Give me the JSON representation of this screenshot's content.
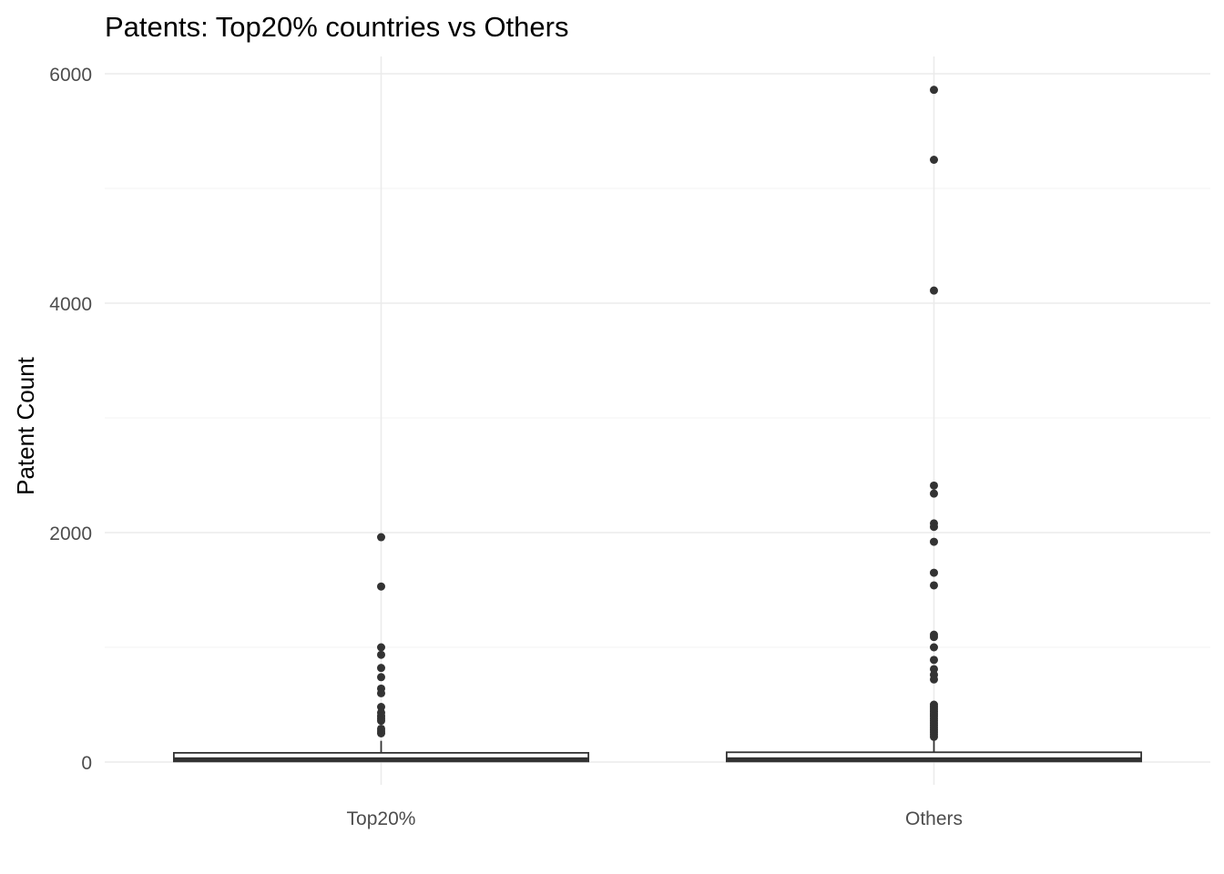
{
  "chart_data": {
    "type": "boxplot",
    "title": "Patents: Top20% countries vs Others",
    "xlabel": "",
    "ylabel": "Patent Count",
    "categories": [
      "Top20%",
      "Others"
    ],
    "ylim": [
      -200,
      6150
    ],
    "y_ticks": [
      0,
      2000,
      4000,
      6000
    ],
    "y_tick_labels": [
      "0",
      "2000",
      "4000",
      "6000"
    ],
    "grid": true,
    "colors": {
      "box": "#333333",
      "outlier": "#333333",
      "grid": "#ebebeb",
      "background": "#ffffff"
    },
    "boxes": [
      {
        "category": "Top20%",
        "q1": 5,
        "median": 25,
        "q3": 80,
        "whisker_low": 0,
        "whisker_high": 185,
        "outliers": [
          1960,
          1530,
          1000,
          935,
          820,
          740,
          640,
          600,
          480,
          430,
          400,
          380,
          360,
          290,
          270,
          250
        ]
      },
      {
        "category": "Others",
        "q1": 5,
        "median": 25,
        "q3": 85,
        "whisker_low": 0,
        "whisker_high": 200,
        "outliers": [
          5860,
          5250,
          4110,
          2410,
          2340,
          2080,
          2050,
          1920,
          1650,
          1540,
          1110,
          1090,
          1000,
          890,
          810,
          760,
          720,
          500,
          480,
          460,
          440,
          420,
          400,
          380,
          360,
          340,
          320,
          300,
          280,
          260,
          240,
          220
        ]
      }
    ]
  }
}
